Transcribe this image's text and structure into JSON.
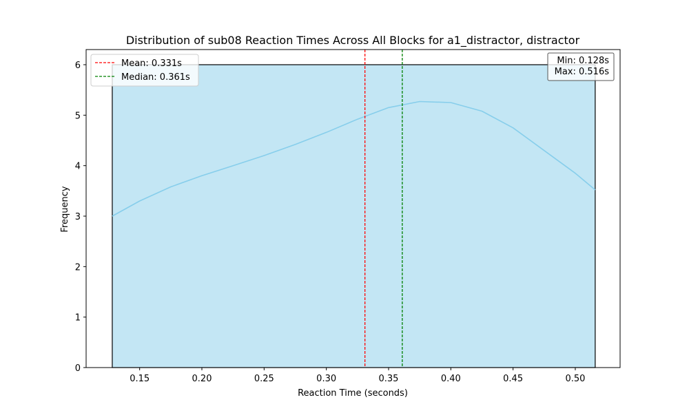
{
  "chart_data": {
    "type": "histogram",
    "title": "Distribution of sub08 Reaction Times Across All Blocks for a1_distractor, distractor",
    "xlabel": "Reaction Time (seconds)",
    "ylabel": "Frequency",
    "xlim": [
      0.107,
      0.536
    ],
    "ylim": [
      0,
      6.3
    ],
    "x_ticks": [
      0.15,
      0.2,
      0.25,
      0.3,
      0.35,
      0.4,
      0.45,
      0.5
    ],
    "x_tick_labels": [
      "0.15",
      "0.20",
      "0.25",
      "0.30",
      "0.35",
      "0.40",
      "0.45",
      "0.50"
    ],
    "y_ticks": [
      0,
      1,
      2,
      3,
      4,
      5,
      6
    ],
    "y_tick_labels": [
      "0",
      "1",
      "2",
      "3",
      "4",
      "5",
      "6"
    ],
    "grid": false,
    "bins": [
      {
        "x_start": 0.128,
        "x_end": 0.516,
        "count": 6
      }
    ],
    "kde": {
      "x": [
        0.128,
        0.15,
        0.175,
        0.2,
        0.225,
        0.25,
        0.275,
        0.3,
        0.325,
        0.35,
        0.375,
        0.4,
        0.425,
        0.45,
        0.475,
        0.5,
        0.516
      ],
      "y": [
        3.0,
        3.3,
        3.58,
        3.8,
        4.0,
        4.2,
        4.42,
        4.66,
        4.92,
        5.15,
        5.27,
        5.25,
        5.08,
        4.75,
        4.3,
        3.85,
        3.52
      ]
    },
    "reference_lines": [
      {
        "name": "Mean: 0.331s",
        "x": 0.331,
        "color": "#ff0000",
        "style": "dashed"
      },
      {
        "name": "Median: 0.361s",
        "x": 0.361,
        "color": "#008000",
        "style": "dashed"
      }
    ],
    "legend_position": "top-left",
    "stats_box": {
      "line1": "Min: 0.128s",
      "line2": "Max: 0.516s",
      "position": "top-right"
    },
    "colors": {
      "bar_fill": "#c3e6f4",
      "bar_edge": "#000000",
      "kde_line": "#87ceeb"
    }
  }
}
